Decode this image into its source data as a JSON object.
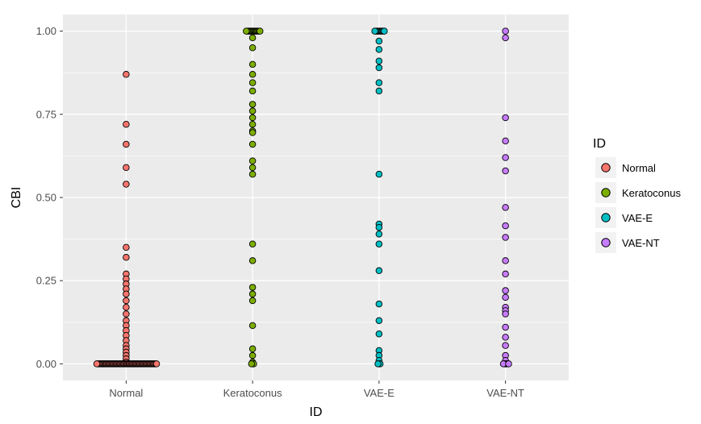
{
  "chart_data": {
    "type": "scatter",
    "xlabel": "ID",
    "ylabel": "CBI",
    "categories": [
      "Normal",
      "Keratoconus",
      "VAE-E",
      "VAE-NT"
    ],
    "ylim": [
      -0.05,
      1.05
    ],
    "yticks": [
      {
        "value": 0.0,
        "label": "0.00"
      },
      {
        "value": 0.25,
        "label": "0.25"
      },
      {
        "value": 0.5,
        "label": "0.50"
      },
      {
        "value": 0.75,
        "label": "0.75"
      },
      {
        "value": 1.0,
        "label": "1.00"
      }
    ],
    "grid": true,
    "legend": {
      "title": "ID",
      "position": "right",
      "entries": [
        {
          "label": "Normal",
          "color": "#F8766D"
        },
        {
          "label": "Keratoconus",
          "color": "#7CAE00"
        },
        {
          "label": "VAE-E",
          "color": "#00BFC4"
        },
        {
          "label": "VAE-NT",
          "color": "#C77CFF"
        }
      ]
    },
    "colors": {
      "panel_background": "#EBEBEB",
      "grid_major": "#FFFFFF",
      "point_stroke": "#000000"
    },
    "series": [
      {
        "category": "Normal",
        "color": "#F8766D",
        "values": [
          0.87,
          0.72,
          0.66,
          0.59,
          0.54,
          0.35,
          0.32,
          0.27,
          0.255,
          0.24,
          0.225,
          0.21,
          0.19,
          0.17,
          0.15,
          0.13,
          0.115,
          0.1,
          0.085,
          0.07,
          0.055,
          0.045,
          0.035,
          0.025,
          0.015,
          0.005,
          0.0,
          0.0,
          0.0,
          0.0,
          0.0,
          0.0,
          0.0,
          0.0,
          0.0,
          0.0,
          0.0,
          0.0,
          0.0,
          0.0,
          0.0,
          0.0,
          0.0,
          0.0,
          0.0,
          0.0,
          0.0,
          0.0,
          0.0,
          0.0,
          0.0,
          0.0,
          0.0,
          0.0,
          0.0,
          0.0,
          0.0,
          0.0,
          0.0,
          0.0,
          0.0,
          0.0,
          0.0,
          0.0,
          0.0,
          0.0,
          0.0,
          0.0,
          0.0,
          0.0,
          0.0,
          0.0,
          0.0,
          0.0,
          0.0,
          0.0,
          0.0,
          0.0,
          0.0,
          0.0,
          0.0,
          0.0,
          0.0,
          0.0
        ]
      },
      {
        "category": "Keratoconus",
        "color": "#7CAE00",
        "values": [
          1.0,
          1.0,
          1.0,
          1.0,
          1.0,
          1.0,
          1.0,
          1.0,
          1.0,
          1.0,
          1.0,
          1.0,
          1.0,
          1.0,
          0.98,
          0.95,
          0.9,
          0.87,
          0.845,
          0.82,
          0.78,
          0.76,
          0.74,
          0.72,
          0.7,
          0.695,
          0.66,
          0.61,
          0.59,
          0.57,
          0.36,
          0.31,
          0.23,
          0.21,
          0.19,
          0.115,
          0.045,
          0.025,
          0.005,
          0.0,
          0.0,
          0.0
        ]
      },
      {
        "category": "VAE-E",
        "color": "#00BFC4",
        "values": [
          1.0,
          1.0,
          1.0,
          1.0,
          1.0,
          1.0,
          1.0,
          1.0,
          1.0,
          1.0,
          0.97,
          0.945,
          0.91,
          0.89,
          0.845,
          0.82,
          0.57,
          0.42,
          0.41,
          0.39,
          0.36,
          0.28,
          0.18,
          0.13,
          0.09,
          0.04,
          0.025,
          0.01,
          0.0,
          0.0,
          0.0
        ]
      },
      {
        "category": "VAE-NT",
        "color": "#C77CFF",
        "values": [
          1.0,
          0.98,
          0.74,
          0.67,
          0.62,
          0.58,
          0.47,
          0.415,
          0.38,
          0.31,
          0.27,
          0.22,
          0.2,
          0.17,
          0.16,
          0.15,
          0.11,
          0.08,
          0.055,
          0.025,
          0.01,
          0.0,
          0.0,
          0.0,
          0.0,
          0.0,
          0.0
        ]
      }
    ]
  }
}
